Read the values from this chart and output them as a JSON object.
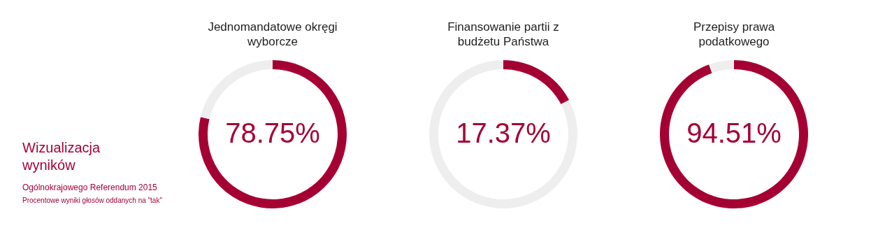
{
  "chart_data": [
    {
      "type": "other",
      "title": "Wizualizacja wyników",
      "subtitle": "Ogólnokrajowego Referendum 2015",
      "annotations": [
        "Procentowe wyniki głosów oddanych na \"tak\""
      ]
    },
    {
      "type": "donut",
      "title": "Jednomandatowe okręgi wyborcze",
      "categories": [
        null,
        null
      ],
      "values": [
        78.75,
        21.25
      ],
      "colors": [
        "#a50034",
        "#eeeeee"
      ],
      "value_labels": [
        "78.75%",
        null
      ]
    },
    {
      "type": "donut",
      "title": "Finansowanie partii z budżetu Państwa",
      "categories": [
        null,
        null
      ],
      "values": [
        17.37,
        82.63
      ],
      "colors": [
        "#a50034",
        "#eeeeee"
      ],
      "value_labels": [
        "17.37%",
        null
      ]
    },
    {
      "type": "donut",
      "title": "Przepisy prawa podatkowego",
      "categories": [
        null,
        null
      ],
      "values": [
        94.51,
        5.49
      ],
      "colors": [
        "#a50034",
        "#eeeeee"
      ],
      "value_labels": [
        "94.51%",
        null
      ]
    }
  ]
}
